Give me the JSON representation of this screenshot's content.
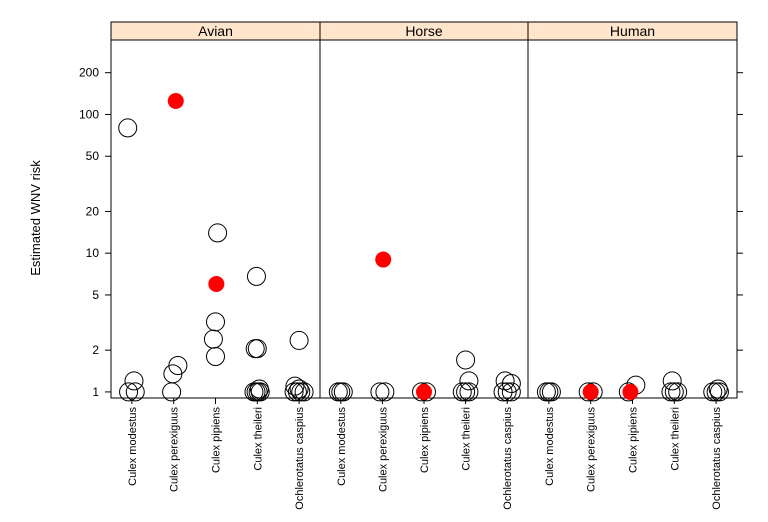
{
  "chart_data": {
    "type": "scatter",
    "ylabel": "Estimated WNV risk",
    "y_scale": "log",
    "ylim": [
      0.95,
      350
    ],
    "y_ticks": [
      "1",
      "2",
      "5",
      "10",
      "20",
      "50",
      "100",
      "200"
    ],
    "categories": [
      "Culex modestus",
      "Culex perexiguus",
      "Culex pipiens",
      "Culex theileri",
      "Ochlerotatus caspius"
    ],
    "highlight_color": "#ff0000",
    "strip_color": "#ffe5cc",
    "panels": [
      {
        "name": "Avian",
        "points": [
          {
            "cat": 0,
            "y": 80,
            "j": -0.1
          },
          {
            "cat": 0,
            "y": 1.2,
            "j": 0.05
          },
          {
            "cat": 0,
            "y": 1.0,
            "j": -0.08
          },
          {
            "cat": 0,
            "y": 1.0,
            "j": 0.08
          },
          {
            "cat": 1,
            "y": 125,
            "j": 0.05,
            "highlight": true
          },
          {
            "cat": 1,
            "y": 1.55,
            "j": 0.1
          },
          {
            "cat": 1,
            "y": 1.35,
            "j": -0.02
          },
          {
            "cat": 1,
            "y": 1.0,
            "j": -0.05
          },
          {
            "cat": 2,
            "y": 14,
            "j": 0.05
          },
          {
            "cat": 2,
            "y": 6,
            "j": 0.02,
            "highlight": true
          },
          {
            "cat": 2,
            "y": 3.2,
            "j": 0.0
          },
          {
            "cat": 2,
            "y": 2.4,
            "j": -0.05
          },
          {
            "cat": 2,
            "y": 1.8,
            "j": 0.0
          },
          {
            "cat": 3,
            "y": 6.8,
            "j": -0.02
          },
          {
            "cat": 3,
            "y": 2.05,
            "j": -0.05
          },
          {
            "cat": 3,
            "y": 2.05,
            "j": 0.0
          },
          {
            "cat": 3,
            "y": 1.05,
            "j": 0.05
          },
          {
            "cat": 3,
            "y": 1.0,
            "j": -0.08
          },
          {
            "cat": 3,
            "y": 1.0,
            "j": -0.03
          },
          {
            "cat": 3,
            "y": 1.0,
            "j": 0.02
          },
          {
            "cat": 3,
            "y": 1.0,
            "j": 0.07
          },
          {
            "cat": 4,
            "y": 2.35,
            "j": 0.0
          },
          {
            "cat": 4,
            "y": 1.1,
            "j": -0.1
          },
          {
            "cat": 4,
            "y": 1.05,
            "j": 0.0
          },
          {
            "cat": 4,
            "y": 1.0,
            "j": -0.12
          },
          {
            "cat": 4,
            "y": 1.0,
            "j": -0.04
          },
          {
            "cat": 4,
            "y": 1.0,
            "j": 0.04
          },
          {
            "cat": 4,
            "y": 1.0,
            "j": 0.12
          }
        ]
      },
      {
        "name": "Horse",
        "points": [
          {
            "cat": 0,
            "y": 1.0,
            "j": -0.06
          },
          {
            "cat": 0,
            "y": 1.0,
            "j": 0.0
          },
          {
            "cat": 0,
            "y": 1.0,
            "j": 0.06
          },
          {
            "cat": 1,
            "y": 9,
            "j": 0.02,
            "highlight": true
          },
          {
            "cat": 1,
            "y": 1.0,
            "j": -0.06
          },
          {
            "cat": 1,
            "y": 1.0,
            "j": 0.06
          },
          {
            "cat": 2,
            "y": 1.0,
            "j": 0.0,
            "highlight": true
          },
          {
            "cat": 2,
            "y": 1.0,
            "j": -0.06
          },
          {
            "cat": 2,
            "y": 1.0,
            "j": 0.06
          },
          {
            "cat": 3,
            "y": 1.7,
            "j": 0.0
          },
          {
            "cat": 3,
            "y": 1.2,
            "j": 0.08
          },
          {
            "cat": 3,
            "y": 1.0,
            "j": -0.08
          },
          {
            "cat": 3,
            "y": 1.0,
            "j": 0.0
          },
          {
            "cat": 3,
            "y": 1.0,
            "j": 0.08
          },
          {
            "cat": 4,
            "y": 1.2,
            "j": -0.05
          },
          {
            "cat": 4,
            "y": 1.15,
            "j": 0.1
          },
          {
            "cat": 4,
            "y": 1.0,
            "j": -0.1
          },
          {
            "cat": 4,
            "y": 1.0,
            "j": 0.0
          },
          {
            "cat": 4,
            "y": 1.0,
            "j": 0.1
          }
        ]
      },
      {
        "name": "Human",
        "points": [
          {
            "cat": 0,
            "y": 1.0,
            "j": -0.06
          },
          {
            "cat": 0,
            "y": 1.0,
            "j": 0.0
          },
          {
            "cat": 0,
            "y": 1.0,
            "j": 0.06
          },
          {
            "cat": 1,
            "y": 1.0,
            "j": 0.0,
            "highlight": true
          },
          {
            "cat": 1,
            "y": 1.0,
            "j": -0.06
          },
          {
            "cat": 1,
            "y": 1.0,
            "j": 0.06
          },
          {
            "cat": 2,
            "y": 1.12,
            "j": 0.08
          },
          {
            "cat": 2,
            "y": 1.0,
            "j": -0.05,
            "highlight": true
          },
          {
            "cat": 2,
            "y": 1.0,
            "j": -0.1
          },
          {
            "cat": 3,
            "y": 1.2,
            "j": -0.05
          },
          {
            "cat": 3,
            "y": 1.0,
            "j": -0.08
          },
          {
            "cat": 3,
            "y": 1.0,
            "j": 0.0
          },
          {
            "cat": 3,
            "y": 1.0,
            "j": 0.08
          },
          {
            "cat": 4,
            "y": 1.05,
            "j": 0.05
          },
          {
            "cat": 4,
            "y": 1.0,
            "j": -0.08
          },
          {
            "cat": 4,
            "y": 1.0,
            "j": 0.0
          },
          {
            "cat": 4,
            "y": 1.0,
            "j": 0.08
          }
        ]
      }
    ]
  }
}
